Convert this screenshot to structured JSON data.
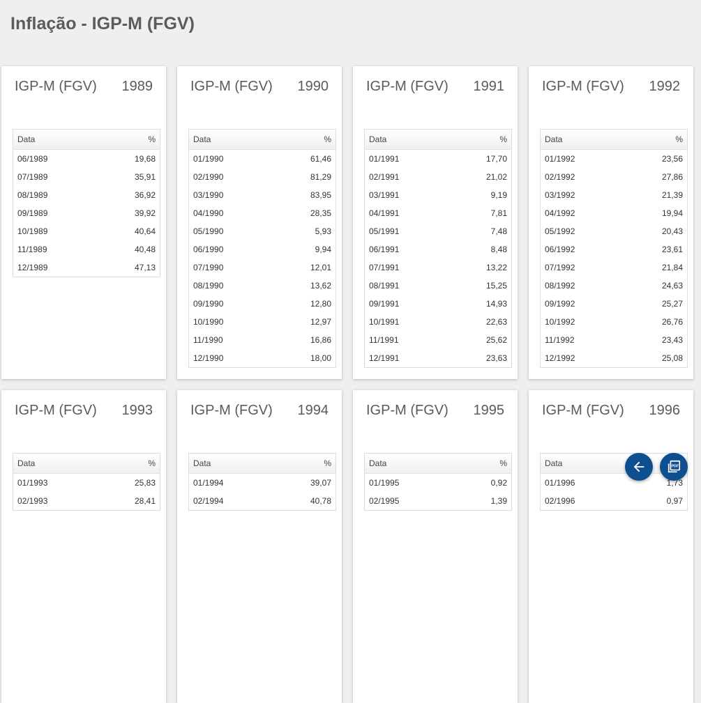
{
  "page": {
    "title": "Inflação - IGP-M (FGV)"
  },
  "table_headers": {
    "date": "Data",
    "percent": "%"
  },
  "cards": [
    {
      "label": "IGP-M (FGV)",
      "year": "1989",
      "rows": [
        [
          "06/1989",
          "19,68"
        ],
        [
          "07/1989",
          "35,91"
        ],
        [
          "08/1989",
          "36,92"
        ],
        [
          "09/1989",
          "39,92"
        ],
        [
          "10/1989",
          "40,64"
        ],
        [
          "11/1989",
          "40,48"
        ],
        [
          "12/1989",
          "47,13"
        ]
      ]
    },
    {
      "label": "IGP-M (FGV)",
      "year": "1990",
      "rows": [
        [
          "01/1990",
          "61,46"
        ],
        [
          "02/1990",
          "81,29"
        ],
        [
          "03/1990",
          "83,95"
        ],
        [
          "04/1990",
          "28,35"
        ],
        [
          "05/1990",
          "5,93"
        ],
        [
          "06/1990",
          "9,94"
        ],
        [
          "07/1990",
          "12,01"
        ],
        [
          "08/1990",
          "13,62"
        ],
        [
          "09/1990",
          "12,80"
        ],
        [
          "10/1990",
          "12,97"
        ],
        [
          "11/1990",
          "16,86"
        ],
        [
          "12/1990",
          "18,00"
        ]
      ]
    },
    {
      "label": "IGP-M (FGV)",
      "year": "1991",
      "rows": [
        [
          "01/1991",
          "17,70"
        ],
        [
          "02/1991",
          "21,02"
        ],
        [
          "03/1991",
          "9,19"
        ],
        [
          "04/1991",
          "7,81"
        ],
        [
          "05/1991",
          "7,48"
        ],
        [
          "06/1991",
          "8,48"
        ],
        [
          "07/1991",
          "13,22"
        ],
        [
          "08/1991",
          "15,25"
        ],
        [
          "09/1991",
          "14,93"
        ],
        [
          "10/1991",
          "22,63"
        ],
        [
          "11/1991",
          "25,62"
        ],
        [
          "12/1991",
          "23,63"
        ]
      ]
    },
    {
      "label": "IGP-M (FGV)",
      "year": "1992",
      "rows": [
        [
          "01/1992",
          "23,56"
        ],
        [
          "02/1992",
          "27,86"
        ],
        [
          "03/1992",
          "21,39"
        ],
        [
          "04/1992",
          "19,94"
        ],
        [
          "05/1992",
          "20,43"
        ],
        [
          "06/1992",
          "23,61"
        ],
        [
          "07/1992",
          "21,84"
        ],
        [
          "08/1992",
          "24,63"
        ],
        [
          "09/1992",
          "25,27"
        ],
        [
          "10/1992",
          "26,76"
        ],
        [
          "11/1992",
          "23,43"
        ],
        [
          "12/1992",
          "25,08"
        ]
      ]
    },
    {
      "label": "IGP-M (FGV)",
      "year": "1993",
      "rows": [
        [
          "01/1993",
          "25,83"
        ],
        [
          "02/1993",
          "28,41"
        ]
      ]
    },
    {
      "label": "IGP-M (FGV)",
      "year": "1994",
      "rows": [
        [
          "01/1994",
          "39,07"
        ],
        [
          "02/1994",
          "40,78"
        ]
      ]
    },
    {
      "label": "IGP-M (FGV)",
      "year": "1995",
      "rows": [
        [
          "01/1995",
          "0,92"
        ],
        [
          "02/1995",
          "1,39"
        ]
      ]
    },
    {
      "label": "IGP-M (FGV)",
      "year": "1996",
      "rows": [
        [
          "01/1996",
          "1,73"
        ],
        [
          "02/1996",
          "0,97"
        ]
      ]
    }
  ],
  "fabs": {
    "back_icon": "arrow-left-icon",
    "pdf_icon": "pdf-icon",
    "pdf_text": "PDF",
    "color": "#0d4f91"
  }
}
